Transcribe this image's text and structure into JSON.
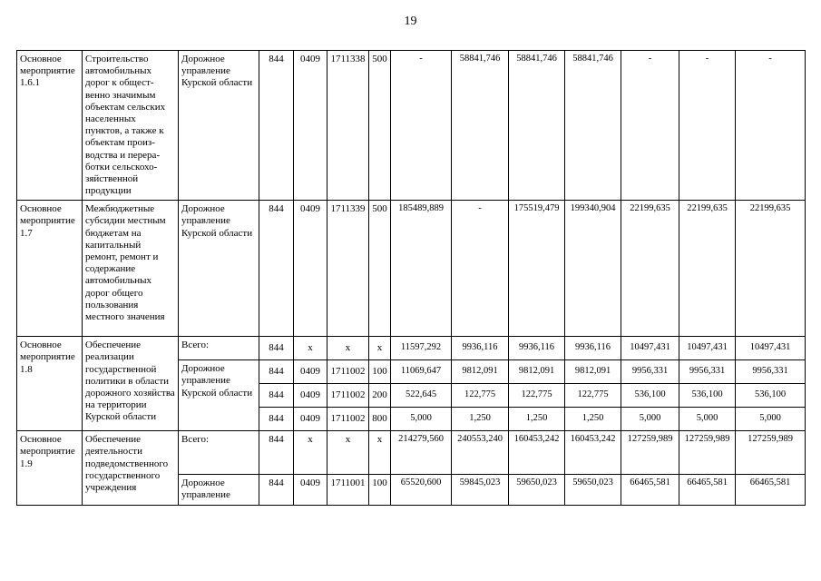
{
  "page": {
    "number": "19"
  },
  "table": {
    "rows": [
      {
        "id": "Основное мероприятие 1.6.1",
        "name": "Строительство автомобильных дорог к общест-венно значимым объектам сельских населенных пунктов, а также к объектам произ-водства и перера-ботки сельскохо-зяйственной продукции",
        "subrows": [
          {
            "executor": "Дорожное управление Курской области",
            "codes": [
              "844",
              "0409",
              "1711338",
              "500"
            ],
            "values": [
              "-",
              "58841,746",
              "58841,746",
              "58841,746",
              "-",
              "-",
              "-"
            ]
          }
        ]
      },
      {
        "id": "Основное мероприятие 1.7",
        "name": "Межбюджетные субсидии местным бюджетам на капитальный ремонт, ремонт и содержание автомобильных дорог общего пользования местного значения",
        "subrows": [
          {
            "executor": "Дорожное управление Курской области",
            "codes": [
              "844",
              "0409",
              "1711339",
              "500"
            ],
            "values": [
              "185489,889",
              "-",
              "175519,479",
              "199340,904",
              "22199,635",
              "22199,635",
              "22199,635"
            ]
          }
        ]
      },
      {
        "id": "Основное мероприятие 1.8",
        "name": "Обеспечение реализации государственной политики в области дорожного хозяйства на территории Курской области",
        "subrows": [
          {
            "executor": "Всего:",
            "codes": [
              "844",
              "x",
              "x",
              "x"
            ],
            "values": [
              "11597,292",
              "9936,116",
              "9936,116",
              "9936,116",
              "10497,431",
              "10497,431",
              "10497,431"
            ]
          },
          {
            "executor": "Дорожное управление Курской области",
            "executor_rowspan": 3,
            "codes": [
              "844",
              "0409",
              "1711002",
              "100"
            ],
            "values": [
              "11069,647",
              "9812,091",
              "9812,091",
              "9812,091",
              "9956,331",
              "9956,331",
              "9956,331"
            ]
          },
          {
            "executor": null,
            "codes": [
              "844",
              "0409",
              "1711002",
              "200"
            ],
            "values": [
              "522,645",
              "122,775",
              "122,775",
              "122,775",
              "536,100",
              "536,100",
              "536,100"
            ]
          },
          {
            "executor": null,
            "codes": [
              "844",
              "0409",
              "1711002",
              "800"
            ],
            "values": [
              "5,000",
              "1,250",
              "1,250",
              "1,250",
              "5,000",
              "5,000",
              "5,000"
            ]
          }
        ]
      },
      {
        "id": "Основное мероприятие 1.9",
        "name": "Обеспечение деятельности подведомственного государственного учреждения",
        "subrows": [
          {
            "executor": "Всего:",
            "codes": [
              "844",
              "x",
              "x",
              "x"
            ],
            "values": [
              "214279,560",
              "240553,240",
              "160453,242",
              "160453,242",
              "127259,989",
              "127259,989",
              "127259,989"
            ]
          },
          {
            "executor": "Дорожное управление",
            "codes": [
              "844",
              "0409",
              "1711001",
              "100"
            ],
            "values": [
              "65520,600",
              "59845,023",
              "59650,023",
              "59650,023",
              "66465,581",
              "66465,581",
              "66465,581"
            ]
          }
        ]
      }
    ]
  }
}
